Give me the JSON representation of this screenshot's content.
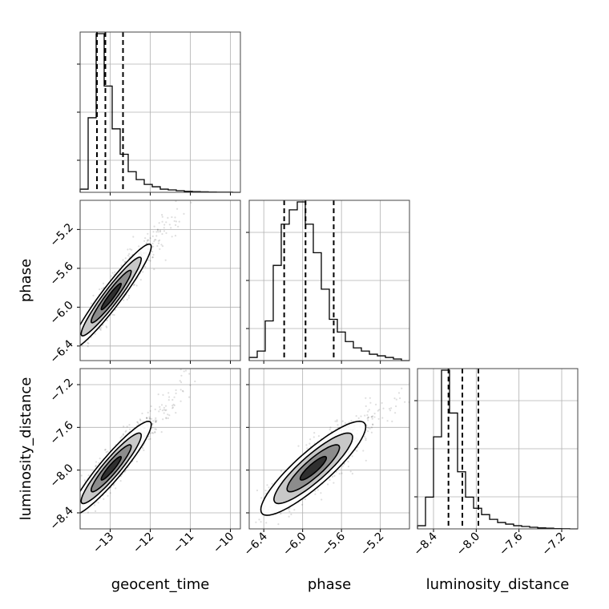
{
  "chart_data": {
    "type": "corner",
    "parameters": [
      {
        "name": "geocent_time",
        "label": "geocent_time",
        "range": [
          -13.75,
          -9.75
        ],
        "ticks": [
          -13,
          -12,
          -11,
          -10
        ],
        "tick_labels": [
          "−13",
          "−12",
          "−11",
          "−10"
        ],
        "quantiles": [
          -13.33,
          -13.12,
          -12.68
        ],
        "histogram": {
          "bin_start": -13.75,
          "bin_width": 0.2,
          "counts": [
            0.02,
            0.47,
            1.0,
            0.67,
            0.4,
            0.24,
            0.13,
            0.08,
            0.05,
            0.035,
            0.02,
            0.015,
            0.01,
            0.006,
            0.004,
            0.003,
            0.002,
            0.001,
            0.001,
            0.0
          ]
        }
      },
      {
        "name": "phase",
        "label": "phase",
        "range": [
          -6.55,
          -4.9
        ],
        "ticks": [
          -6.4,
          -6.0,
          -5.6,
          -5.2
        ],
        "tick_labels": [
          "−6.4",
          "−6.0",
          "−5.6",
          "−5.2"
        ],
        "quantiles": [
          -6.19,
          -5.97,
          -5.68
        ],
        "histogram": {
          "bin_start": -6.55,
          "bin_width": 0.0825,
          "counts": [
            0.02,
            0.06,
            0.25,
            0.6,
            0.86,
            0.95,
            1.0,
            0.86,
            0.68,
            0.45,
            0.26,
            0.18,
            0.12,
            0.08,
            0.06,
            0.04,
            0.03,
            0.02,
            0.01,
            0.0
          ]
        }
      },
      {
        "name": "luminosity_distance",
        "label": "luminosity_distance",
        "range": [
          -8.55,
          -7.05
        ],
        "ticks": [
          -8.4,
          -8.0,
          -7.6,
          -7.2
        ],
        "tick_labels": [
          "−8.4",
          "−8.0",
          "−7.6",
          "−7.2"
        ],
        "quantiles": [
          -8.26,
          -8.13,
          -7.98
        ],
        "histogram": {
          "bin_start": -8.55,
          "bin_width": 0.075,
          "counts": [
            0.02,
            0.2,
            0.58,
            1.0,
            0.73,
            0.36,
            0.2,
            0.13,
            0.09,
            0.06,
            0.04,
            0.03,
            0.02,
            0.015,
            0.01,
            0.006,
            0.004,
            0.002,
            0.001,
            0.0
          ]
        }
      }
    ],
    "pairs": [
      {
        "x_param": "geocent_time",
        "y_param": "phase",
        "mean": [
          -12.9,
          -5.85
        ],
        "std": [
          0.5,
          0.27
        ],
        "correlation": 0.95
      },
      {
        "x_param": "geocent_time",
        "y_param": "luminosity_distance",
        "mean": [
          -12.9,
          -7.95
        ],
        "std": [
          0.5,
          0.22
        ],
        "correlation": 0.93
      },
      {
        "x_param": "phase",
        "y_param": "luminosity_distance",
        "mean": [
          -5.85,
          -7.95
        ],
        "std": [
          0.27,
          0.22
        ],
        "correlation": 0.88
      }
    ],
    "contour_levels_sigma": [
      0.5,
      1.0,
      1.5,
      2.0
    ],
    "grid": true,
    "quantile_lines": "dashed"
  }
}
